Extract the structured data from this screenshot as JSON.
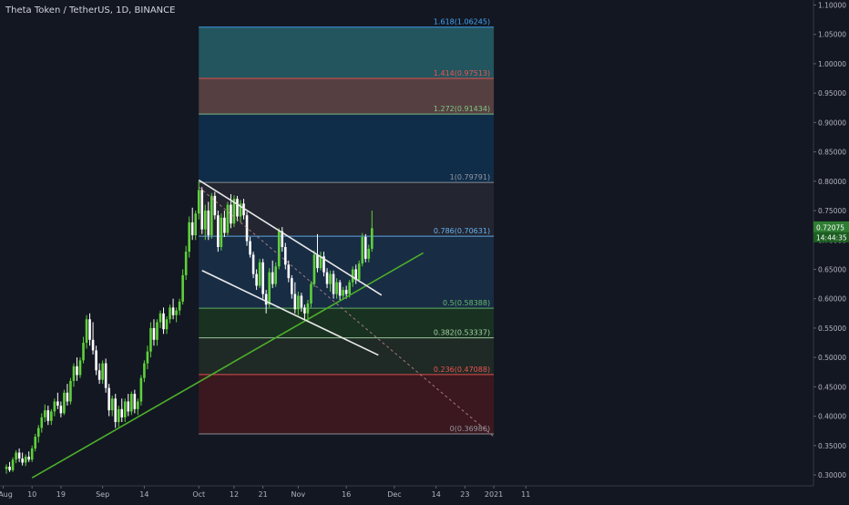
{
  "header": {
    "symbol": "Theta Token / TetherUS, 1D, BINANCE"
  },
  "colors": {
    "background": "#131722",
    "candle_up": "#5ed13a",
    "candle_down": "#ffffff",
    "trendline_green": "#4caf2a",
    "channel_white": "#e8e8e8",
    "axis_text": "#b2b5be"
  },
  "chart_data": {
    "type": "candlestick",
    "symbol": "THETA/USDT",
    "timeframe": "1D",
    "exchange": "BINANCE",
    "ylim": [
      0.295,
      1.105
    ],
    "y_ticks": [
      "0.30000",
      "0.35000",
      "0.40000",
      "0.45000",
      "0.50000",
      "0.55000",
      "0.60000",
      "0.65000",
      "0.70000",
      "0.75000",
      "0.80000",
      "0.85000",
      "0.90000",
      "0.95000",
      "1.00000",
      "1.05000",
      "1.10000"
    ],
    "x_ticks": [
      {
        "label": "Aug",
        "date": "2020-08-01"
      },
      {
        "label": "10",
        "date": "2020-08-10"
      },
      {
        "label": "19",
        "date": "2020-08-19"
      },
      {
        "label": "Sep",
        "date": "2020-09-01"
      },
      {
        "label": "14",
        "date": "2020-09-14"
      },
      {
        "label": "Oct",
        "date": "2020-10-01"
      },
      {
        "label": "12",
        "date": "2020-10-12"
      },
      {
        "label": "21",
        "date": "2020-10-21"
      },
      {
        "label": "Nov",
        "date": "2020-11-01"
      },
      {
        "label": "16",
        "date": "2020-11-16"
      },
      {
        "label": "Dec",
        "date": "2020-12-01"
      },
      {
        "label": "14",
        "date": "2020-12-14"
      },
      {
        "label": "23",
        "date": "2020-12-23"
      },
      {
        "label": "2021",
        "date": "2021-01-01"
      },
      {
        "label": "11",
        "date": "2021-01-11"
      }
    ],
    "price_label": {
      "value": "0.72075",
      "countdown": "14:44:35"
    },
    "fib_levels": [
      {
        "ratio": "1.618",
        "value": 1.06245,
        "label": "1.618(1.06245)",
        "color": "#42a5f5"
      },
      {
        "ratio": "1.414",
        "value": 0.97513,
        "label": "1.414(0.97513)",
        "color": "#ef5350"
      },
      {
        "ratio": "1.272",
        "value": 0.91434,
        "label": "1.272(0.91434)",
        "color": "#81c784"
      },
      {
        "ratio": "1",
        "value": 0.79791,
        "label": "1(0.79791)",
        "color": "#9598a1"
      },
      {
        "ratio": "0.786",
        "value": 0.70631,
        "label": "0.786(0.70631)",
        "color": "#64b5f6"
      },
      {
        "ratio": "0.5",
        "value": 0.58388,
        "label": "0.5(0.58388)",
        "color": "#66bb6a"
      },
      {
        "ratio": "0.382",
        "value": 0.53337,
        "label": "0.382(0.53337)",
        "color": "#a5d6a7"
      },
      {
        "ratio": "0.236",
        "value": 0.47088,
        "label": "0.236(0.47088)",
        "color": "#ef5350"
      },
      {
        "ratio": "0",
        "value": 0.36986,
        "label": "0(0.36986)",
        "color": "#9598a1"
      }
    ],
    "fib_zones": [
      {
        "top": 1.06245,
        "bottom": 0.97513,
        "color": "#2a6b73"
      },
      {
        "top": 0.97513,
        "bottom": 0.91434,
        "color": "#6d4d4c"
      },
      {
        "top": 0.91434,
        "bottom": 0.79791,
        "color": "#0f3557"
      },
      {
        "top": 0.79791,
        "bottom": 0.70631,
        "color": "#2a2b36"
      },
      {
        "top": 0.70631,
        "bottom": 0.58388,
        "color": "#1b3450"
      },
      {
        "top": 0.58388,
        "bottom": 0.53337,
        "color": "#1c3b22"
      },
      {
        "top": 0.53337,
        "bottom": 0.47088,
        "color": "#243027"
      },
      {
        "top": 0.47088,
        "bottom": 0.36986,
        "color": "#4a1a1f"
      }
    ],
    "fib_start": "2020-10-01",
    "fib_end": "2021-01-01",
    "trendlines": [
      {
        "name": "uptrend-support",
        "color": "#4caf2a",
        "x1": "2020-08-10",
        "y1": 0.295,
        "x2": "2020-12-10",
        "y2": 0.678
      },
      {
        "name": "channel-upper",
        "color": "#e8e8e8",
        "x1": "2020-10-01",
        "y1": 0.802,
        "x2": "2020-11-27",
        "y2": 0.606
      },
      {
        "name": "channel-lower",
        "color": "#e8e8e8",
        "x1": "2020-10-02",
        "y1": 0.648,
        "x2": "2020-11-26",
        "y2": 0.504
      },
      {
        "name": "dotted-projection",
        "color": "#c98e8e",
        "dashed": true,
        "x1": "2020-10-01",
        "y1": 0.79,
        "x2": "2021-01-01",
        "y2": 0.365
      }
    ],
    "candles": [
      {
        "d": "2020-08-02",
        "o": 0.31,
        "h": 0.318,
        "l": 0.302,
        "c": 0.314
      },
      {
        "d": "2020-08-03",
        "o": 0.314,
        "h": 0.322,
        "l": 0.305,
        "c": 0.308
      },
      {
        "d": "2020-08-04",
        "o": 0.308,
        "h": 0.33,
        "l": 0.305,
        "c": 0.326
      },
      {
        "d": "2020-08-05",
        "o": 0.326,
        "h": 0.342,
        "l": 0.32,
        "c": 0.338
      },
      {
        "d": "2020-08-06",
        "o": 0.338,
        "h": 0.345,
        "l": 0.322,
        "c": 0.328
      },
      {
        "d": "2020-08-07",
        "o": 0.328,
        "h": 0.338,
        "l": 0.316,
        "c": 0.321
      },
      {
        "d": "2020-08-08",
        "o": 0.321,
        "h": 0.335,
        "l": 0.315,
        "c": 0.331
      },
      {
        "d": "2020-08-09",
        "o": 0.331,
        "h": 0.34,
        "l": 0.322,
        "c": 0.326
      },
      {
        "d": "2020-08-10",
        "o": 0.326,
        "h": 0.35,
        "l": 0.322,
        "c": 0.345
      },
      {
        "d": "2020-08-11",
        "o": 0.345,
        "h": 0.37,
        "l": 0.34,
        "c": 0.365
      },
      {
        "d": "2020-08-12",
        "o": 0.365,
        "h": 0.385,
        "l": 0.355,
        "c": 0.38
      },
      {
        "d": "2020-08-13",
        "o": 0.38,
        "h": 0.405,
        "l": 0.372,
        "c": 0.398
      },
      {
        "d": "2020-08-14",
        "o": 0.398,
        "h": 0.42,
        "l": 0.39,
        "c": 0.41
      },
      {
        "d": "2020-08-15",
        "o": 0.41,
        "h": 0.418,
        "l": 0.385,
        "c": 0.392
      },
      {
        "d": "2020-08-16",
        "o": 0.392,
        "h": 0.412,
        "l": 0.385,
        "c": 0.408
      },
      {
        "d": "2020-08-17",
        "o": 0.408,
        "h": 0.43,
        "l": 0.4,
        "c": 0.425
      },
      {
        "d": "2020-08-18",
        "o": 0.425,
        "h": 0.44,
        "l": 0.412,
        "c": 0.418
      },
      {
        "d": "2020-08-19",
        "o": 0.418,
        "h": 0.425,
        "l": 0.398,
        "c": 0.405
      },
      {
        "d": "2020-08-20",
        "o": 0.405,
        "h": 0.445,
        "l": 0.402,
        "c": 0.44
      },
      {
        "d": "2020-08-21",
        "o": 0.44,
        "h": 0.455,
        "l": 0.418,
        "c": 0.425
      },
      {
        "d": "2020-08-22",
        "o": 0.425,
        "h": 0.465,
        "l": 0.42,
        "c": 0.46
      },
      {
        "d": "2020-08-23",
        "o": 0.46,
        "h": 0.49,
        "l": 0.45,
        "c": 0.485
      },
      {
        "d": "2020-08-24",
        "o": 0.485,
        "h": 0.5,
        "l": 0.46,
        "c": 0.47
      },
      {
        "d": "2020-08-25",
        "o": 0.47,
        "h": 0.5,
        "l": 0.465,
        "c": 0.495
      },
      {
        "d": "2020-08-26",
        "o": 0.495,
        "h": 0.535,
        "l": 0.49,
        "c": 0.525
      },
      {
        "d": "2020-08-27",
        "o": 0.525,
        "h": 0.572,
        "l": 0.515,
        "c": 0.565
      },
      {
        "d": "2020-08-28",
        "o": 0.565,
        "h": 0.575,
        "l": 0.52,
        "c": 0.53
      },
      {
        "d": "2020-08-29",
        "o": 0.53,
        "h": 0.56,
        "l": 0.505,
        "c": 0.512
      },
      {
        "d": "2020-08-30",
        "o": 0.512,
        "h": 0.52,
        "l": 0.47,
        "c": 0.478
      },
      {
        "d": "2020-08-31",
        "o": 0.478,
        "h": 0.49,
        "l": 0.455,
        "c": 0.462
      },
      {
        "d": "2020-09-01",
        "o": 0.462,
        "h": 0.495,
        "l": 0.455,
        "c": 0.49
      },
      {
        "d": "2020-09-02",
        "o": 0.49,
        "h": 0.498,
        "l": 0.44,
        "c": 0.448
      },
      {
        "d": "2020-09-03",
        "o": 0.448,
        "h": 0.455,
        "l": 0.4,
        "c": 0.41
      },
      {
        "d": "2020-09-04",
        "o": 0.41,
        "h": 0.435,
        "l": 0.4,
        "c": 0.43
      },
      {
        "d": "2020-09-05",
        "o": 0.43,
        "h": 0.438,
        "l": 0.38,
        "c": 0.39
      },
      {
        "d": "2020-09-06",
        "o": 0.39,
        "h": 0.418,
        "l": 0.382,
        "c": 0.412
      },
      {
        "d": "2020-09-07",
        "o": 0.412,
        "h": 0.43,
        "l": 0.39,
        "c": 0.398
      },
      {
        "d": "2020-09-08",
        "o": 0.398,
        "h": 0.43,
        "l": 0.39,
        "c": 0.425
      },
      {
        "d": "2020-09-09",
        "o": 0.425,
        "h": 0.438,
        "l": 0.4,
        "c": 0.408
      },
      {
        "d": "2020-09-10",
        "o": 0.408,
        "h": 0.442,
        "l": 0.402,
        "c": 0.438
      },
      {
        "d": "2020-09-11",
        "o": 0.438,
        "h": 0.445,
        "l": 0.405,
        "c": 0.412
      },
      {
        "d": "2020-09-12",
        "o": 0.412,
        "h": 0.43,
        "l": 0.402,
        "c": 0.425
      },
      {
        "d": "2020-09-13",
        "o": 0.425,
        "h": 0.47,
        "l": 0.418,
        "c": 0.465
      },
      {
        "d": "2020-09-14",
        "o": 0.465,
        "h": 0.495,
        "l": 0.458,
        "c": 0.49
      },
      {
        "d": "2020-09-15",
        "o": 0.49,
        "h": 0.52,
        "l": 0.48,
        "c": 0.51
      },
      {
        "d": "2020-09-16",
        "o": 0.51,
        "h": 0.56,
        "l": 0.5,
        "c": 0.55
      },
      {
        "d": "2020-09-17",
        "o": 0.55,
        "h": 0.565,
        "l": 0.52,
        "c": 0.53
      },
      {
        "d": "2020-09-18",
        "o": 0.53,
        "h": 0.565,
        "l": 0.52,
        "c": 0.56
      },
      {
        "d": "2020-09-19",
        "o": 0.56,
        "h": 0.58,
        "l": 0.55,
        "c": 0.575
      },
      {
        "d": "2020-09-20",
        "o": 0.575,
        "h": 0.585,
        "l": 0.54,
        "c": 0.548
      },
      {
        "d": "2020-09-21",
        "o": 0.548,
        "h": 0.57,
        "l": 0.54,
        "c": 0.565
      },
      {
        "d": "2020-09-22",
        "o": 0.565,
        "h": 0.59,
        "l": 0.558,
        "c": 0.585
      },
      {
        "d": "2020-09-23",
        "o": 0.585,
        "h": 0.6,
        "l": 0.565,
        "c": 0.572
      },
      {
        "d": "2020-09-24",
        "o": 0.572,
        "h": 0.585,
        "l": 0.56,
        "c": 0.58
      },
      {
        "d": "2020-09-25",
        "o": 0.58,
        "h": 0.6,
        "l": 0.572,
        "c": 0.595
      },
      {
        "d": "2020-09-26",
        "o": 0.595,
        "h": 0.65,
        "l": 0.59,
        "c": 0.64
      },
      {
        "d": "2020-09-27",
        "o": 0.64,
        "h": 0.69,
        "l": 0.632,
        "c": 0.68
      },
      {
        "d": "2020-09-28",
        "o": 0.68,
        "h": 0.74,
        "l": 0.67,
        "c": 0.73
      },
      {
        "d": "2020-09-29",
        "o": 0.73,
        "h": 0.755,
        "l": 0.7,
        "c": 0.708
      },
      {
        "d": "2020-09-30",
        "o": 0.708,
        "h": 0.75,
        "l": 0.7,
        "c": 0.745
      },
      {
        "d": "2020-10-01",
        "o": 0.745,
        "h": 0.8,
        "l": 0.735,
        "c": 0.785
      },
      {
        "d": "2020-10-02",
        "o": 0.785,
        "h": 0.79,
        "l": 0.71,
        "c": 0.718
      },
      {
        "d": "2020-10-03",
        "o": 0.718,
        "h": 0.76,
        "l": 0.7,
        "c": 0.75
      },
      {
        "d": "2020-10-04",
        "o": 0.75,
        "h": 0.765,
        "l": 0.7,
        "c": 0.708
      },
      {
        "d": "2020-10-05",
        "o": 0.708,
        "h": 0.78,
        "l": 0.702,
        "c": 0.775
      },
      {
        "d": "2020-10-06",
        "o": 0.775,
        "h": 0.782,
        "l": 0.735,
        "c": 0.742
      },
      {
        "d": "2020-10-07",
        "o": 0.742,
        "h": 0.75,
        "l": 0.68,
        "c": 0.688
      },
      {
        "d": "2020-10-08",
        "o": 0.688,
        "h": 0.745,
        "l": 0.682,
        "c": 0.738
      },
      {
        "d": "2020-10-09",
        "o": 0.738,
        "h": 0.75,
        "l": 0.705,
        "c": 0.712
      },
      {
        "d": "2020-10-10",
        "o": 0.712,
        "h": 0.765,
        "l": 0.708,
        "c": 0.76
      },
      {
        "d": "2020-10-11",
        "o": 0.76,
        "h": 0.778,
        "l": 0.72,
        "c": 0.728
      },
      {
        "d": "2020-10-12",
        "o": 0.728,
        "h": 0.776,
        "l": 0.722,
        "c": 0.77
      },
      {
        "d": "2020-10-13",
        "o": 0.77,
        "h": 0.775,
        "l": 0.732,
        "c": 0.74
      },
      {
        "d": "2020-10-14",
        "o": 0.74,
        "h": 0.768,
        "l": 0.73,
        "c": 0.762
      },
      {
        "d": "2020-10-15",
        "o": 0.762,
        "h": 0.77,
        "l": 0.735,
        "c": 0.742
      },
      {
        "d": "2020-10-16",
        "o": 0.742,
        "h": 0.748,
        "l": 0.69,
        "c": 0.698
      },
      {
        "d": "2020-10-17",
        "o": 0.698,
        "h": 0.705,
        "l": 0.67,
        "c": 0.675
      },
      {
        "d": "2020-10-18",
        "o": 0.675,
        "h": 0.68,
        "l": 0.635,
        "c": 0.642
      },
      {
        "d": "2020-10-19",
        "o": 0.642,
        "h": 0.65,
        "l": 0.615,
        "c": 0.622
      },
      {
        "d": "2020-10-20",
        "o": 0.622,
        "h": 0.668,
        "l": 0.618,
        "c": 0.662
      },
      {
        "d": "2020-10-21",
        "o": 0.662,
        "h": 0.668,
        "l": 0.6,
        "c": 0.608
      },
      {
        "d": "2020-10-22",
        "o": 0.608,
        "h": 0.615,
        "l": 0.575,
        "c": 0.59
      },
      {
        "d": "2020-10-23",
        "o": 0.59,
        "h": 0.652,
        "l": 0.585,
        "c": 0.645
      },
      {
        "d": "2020-10-24",
        "o": 0.645,
        "h": 0.665,
        "l": 0.618,
        "c": 0.625
      },
      {
        "d": "2020-10-25",
        "o": 0.625,
        "h": 0.662,
        "l": 0.62,
        "c": 0.655
      },
      {
        "d": "2020-10-26",
        "o": 0.655,
        "h": 0.72,
        "l": 0.65,
        "c": 0.715
      },
      {
        "d": "2020-10-27",
        "o": 0.715,
        "h": 0.722,
        "l": 0.68,
        "c": 0.688
      },
      {
        "d": "2020-10-28",
        "o": 0.688,
        "h": 0.695,
        "l": 0.65,
        "c": 0.658
      },
      {
        "d": "2020-10-29",
        "o": 0.658,
        "h": 0.665,
        "l": 0.628,
        "c": 0.635
      },
      {
        "d": "2020-10-30",
        "o": 0.635,
        "h": 0.64,
        "l": 0.6,
        "c": 0.608
      },
      {
        "d": "2020-10-31",
        "o": 0.608,
        "h": 0.628,
        "l": 0.575,
        "c": 0.582
      },
      {
        "d": "2020-11-01",
        "o": 0.582,
        "h": 0.612,
        "l": 0.572,
        "c": 0.605
      },
      {
        "d": "2020-11-02",
        "o": 0.605,
        "h": 0.61,
        "l": 0.578,
        "c": 0.585
      },
      {
        "d": "2020-11-03",
        "o": 0.585,
        "h": 0.59,
        "l": 0.565,
        "c": 0.575
      },
      {
        "d": "2020-11-04",
        "o": 0.575,
        "h": 0.598,
        "l": 0.56,
        "c": 0.592
      },
      {
        "d": "2020-11-05",
        "o": 0.592,
        "h": 0.63,
        "l": 0.585,
        "c": 0.625
      },
      {
        "d": "2020-11-06",
        "o": 0.625,
        "h": 0.682,
        "l": 0.62,
        "c": 0.675
      },
      {
        "d": "2020-11-07",
        "o": 0.675,
        "h": 0.71,
        "l": 0.645,
        "c": 0.652
      },
      {
        "d": "2020-11-08",
        "o": 0.652,
        "h": 0.68,
        "l": 0.648,
        "c": 0.672
      },
      {
        "d": "2020-11-09",
        "o": 0.672,
        "h": 0.68,
        "l": 0.638,
        "c": 0.645
      },
      {
        "d": "2020-11-10",
        "o": 0.645,
        "h": 0.652,
        "l": 0.618,
        "c": 0.625
      },
      {
        "d": "2020-11-11",
        "o": 0.625,
        "h": 0.648,
        "l": 0.612,
        "c": 0.642
      },
      {
        "d": "2020-11-12",
        "o": 0.642,
        "h": 0.648,
        "l": 0.6,
        "c": 0.608
      },
      {
        "d": "2020-11-13",
        "o": 0.608,
        "h": 0.635,
        "l": 0.6,
        "c": 0.628
      },
      {
        "d": "2020-11-14",
        "o": 0.628,
        "h": 0.632,
        "l": 0.598,
        "c": 0.605
      },
      {
        "d": "2020-11-15",
        "o": 0.605,
        "h": 0.62,
        "l": 0.598,
        "c": 0.615
      },
      {
        "d": "2020-11-16",
        "o": 0.615,
        "h": 0.622,
        "l": 0.6,
        "c": 0.608
      },
      {
        "d": "2020-11-17",
        "o": 0.608,
        "h": 0.632,
        "l": 0.602,
        "c": 0.628
      },
      {
        "d": "2020-11-18",
        "o": 0.628,
        "h": 0.655,
        "l": 0.62,
        "c": 0.65
      },
      {
        "d": "2020-11-19",
        "o": 0.65,
        "h": 0.658,
        "l": 0.625,
        "c": 0.632
      },
      {
        "d": "2020-11-20",
        "o": 0.632,
        "h": 0.665,
        "l": 0.628,
        "c": 0.66
      },
      {
        "d": "2020-11-21",
        "o": 0.66,
        "h": 0.712,
        "l": 0.655,
        "c": 0.705
      },
      {
        "d": "2020-11-22",
        "o": 0.705,
        "h": 0.71,
        "l": 0.662,
        "c": 0.668
      },
      {
        "d": "2020-11-23",
        "o": 0.668,
        "h": 0.692,
        "l": 0.662,
        "c": 0.685
      },
      {
        "d": "2020-11-24",
        "o": 0.685,
        "h": 0.75,
        "l": 0.68,
        "c": 0.72
      }
    ]
  }
}
